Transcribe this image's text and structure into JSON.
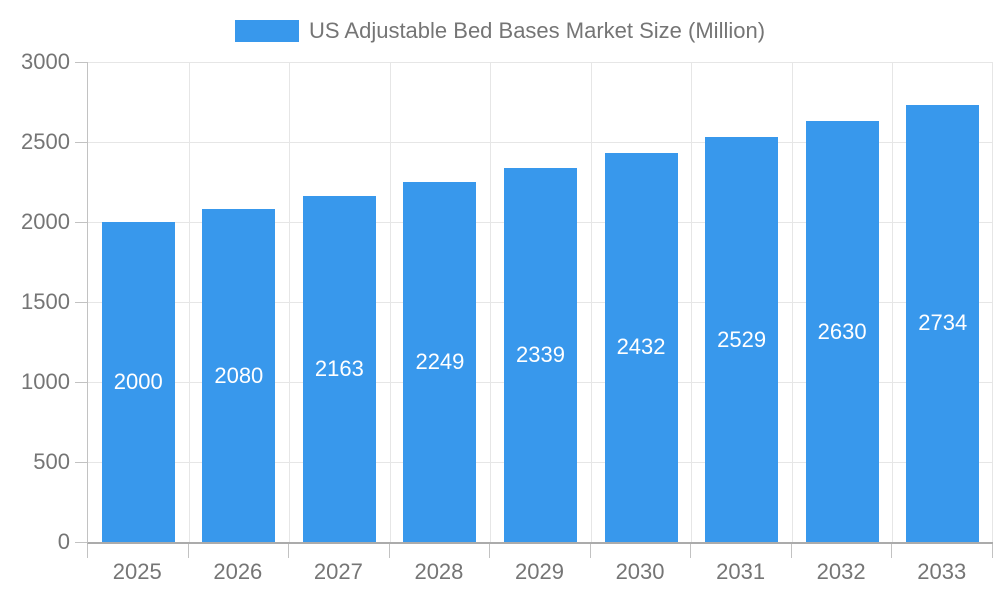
{
  "chart_data": {
    "type": "bar",
    "title": "US Adjustable Bed Bases Market Size (Million)",
    "categories": [
      "2025",
      "2026",
      "2027",
      "2028",
      "2029",
      "2030",
      "2031",
      "2032",
      "2033"
    ],
    "values": [
      2000,
      2080,
      2163,
      2249,
      2339,
      2432,
      2529,
      2630,
      2734
    ],
    "series": [
      {
        "name": "US Adjustable Bed Bases Market Size (Million)",
        "values": [
          2000,
          2080,
          2163,
          2249,
          2339,
          2432,
          2529,
          2630,
          2734
        ]
      }
    ],
    "xlabel": "",
    "ylabel": "",
    "ylim": [
      0,
      3000
    ],
    "y_ticks": [
      0,
      500,
      1000,
      1500,
      2000,
      2500,
      3000
    ],
    "grid": true,
    "legend_position": "top",
    "value_labels_inside_bars": true,
    "colors": {
      "bar": "#3898EC",
      "value_label": "#FFFFFF",
      "axis_text": "#757575",
      "gridline": "#E6E6E6",
      "tick_line": "#C2C2C2"
    }
  }
}
